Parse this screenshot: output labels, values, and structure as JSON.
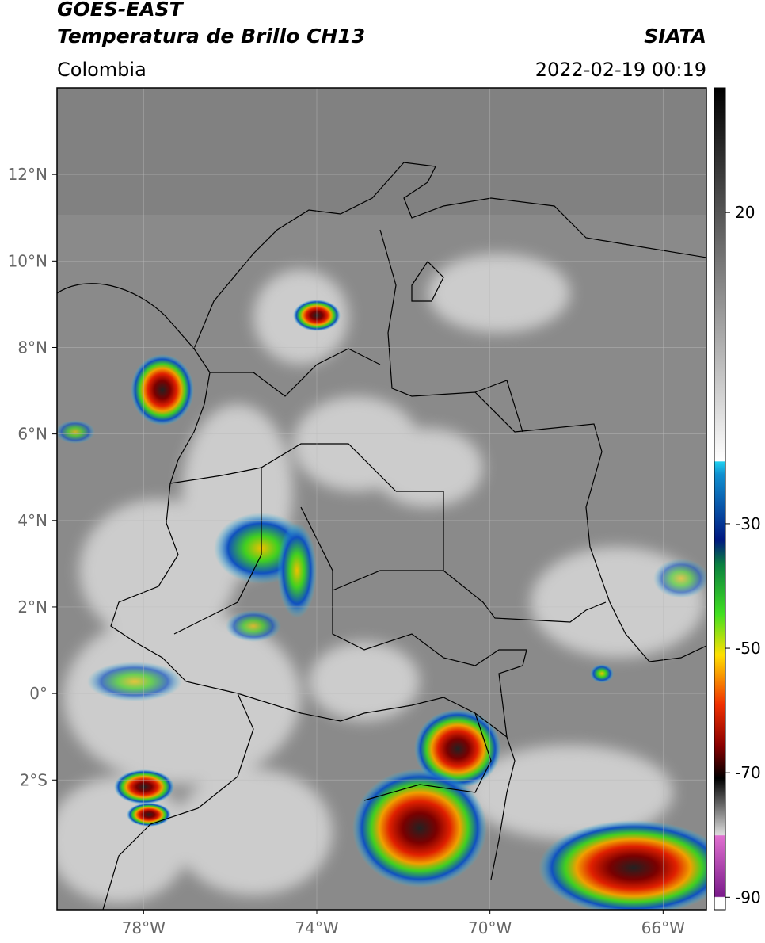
{
  "header": {
    "satellite": "GOES-EAST",
    "product": "Temperatura de Brillo CH13",
    "source": "SIATA",
    "region": "Colombia",
    "datetime": "2022-02-19 00:19"
  },
  "map": {
    "lon_range": [
      -80,
      -65
    ],
    "lat_range": [
      -5,
      14
    ],
    "lat_ticks": [
      {
        "value": 12,
        "label": "12°N"
      },
      {
        "value": 10,
        "label": "10°N"
      },
      {
        "value": 8,
        "label": "8°N"
      },
      {
        "value": 6,
        "label": "6°N"
      },
      {
        "value": 4,
        "label": "4°N"
      },
      {
        "value": 2,
        "label": "2°N"
      },
      {
        "value": 0,
        "label": "0°"
      },
      {
        "value": -2,
        "label": "2°S"
      }
    ],
    "lon_ticks": [
      {
        "value": -78,
        "label": "78°W"
      },
      {
        "value": -74,
        "label": "74°W"
      },
      {
        "value": -70,
        "label": "70°W"
      },
      {
        "value": -66,
        "label": "66°W"
      }
    ]
  },
  "colorbar": {
    "range": [
      -92,
      40
    ],
    "ticks": [
      20,
      -30,
      -50,
      -70,
      -90
    ]
  }
}
